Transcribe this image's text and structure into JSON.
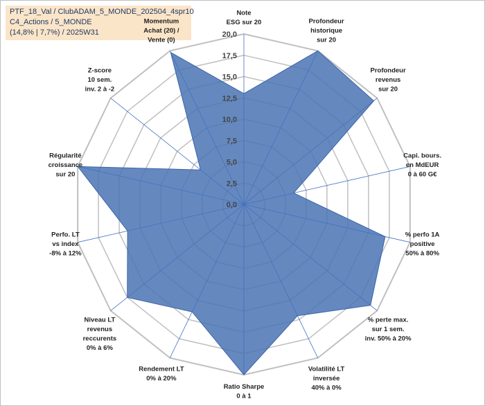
{
  "header": {
    "line1": "PTF_18_Val / ClubADAM_5_MONDE_202504_4spr10",
    "line2": "C4_Actions / 5_MONDE",
    "line3": "(14,8% | 7,7%) / 2025W31"
  },
  "colors": {
    "fill": "#4a74b4",
    "stroke": "#3c64a8",
    "grid": "#bfbfbf",
    "spoke": "#4472c4",
    "header_bg": "#fbe5c8",
    "header_text": "#1f3864"
  },
  "chart_data": {
    "type": "radar",
    "r_range": [
      0,
      20
    ],
    "grid": true,
    "r_ticks": [
      "0,0",
      "2,5",
      "5,0",
      "7,5",
      "10,0",
      "12,5",
      "15,0",
      "17,5",
      "20,0"
    ],
    "axes": [
      {
        "label": [
          "Note",
          "ESG sur 20"
        ],
        "value": 13.0
      },
      {
        "label": [
          "Profondeur",
          "historique",
          "sur 20"
        ],
        "value": 20.0
      },
      {
        "label": [
          "Profondeur",
          "revenus",
          "sur 20"
        ],
        "value": 19.5
      },
      {
        "label": [
          "Capi. bours.",
          "en MdEUR",
          "0 à 60 G€"
        ],
        "value": 6.0
      },
      {
        "label": [
          "% perfo 1A",
          "positive",
          "50% à 80%"
        ],
        "value": 17.0
      },
      {
        "label": [
          "% perte max.",
          "sur 1 sem.",
          "inv. 50% à 20%"
        ],
        "value": 19.0
      },
      {
        "label": [
          "Volatilité LT",
          "inversée",
          "40% à 0%"
        ],
        "value": 14.5
      },
      {
        "label": [
          "Ratio Sharpe",
          "0 à 1"
        ],
        "value": 20.0
      },
      {
        "label": [
          "Rendement LT",
          "0% à 20%"
        ],
        "value": 14.0
      },
      {
        "label": [
          "Niveau LT",
          "revenus",
          "reccurents",
          "0% à 6%"
        ],
        "value": 17.5
      },
      {
        "label": [
          "Perfo. LT",
          "vs index",
          "-8% à 12%"
        ],
        "value": 14.0
      },
      {
        "label": [
          "Régularité",
          "croissance",
          "sur 20"
        ],
        "value": 20.0
      },
      {
        "label": [
          "Z-score",
          "10 sem.",
          "inv. 2 à -2"
        ],
        "value": 6.5
      },
      {
        "label": [
          "Momentum",
          "Achat (20) /",
          "Vente (0)"
        ],
        "value": 19.8
      }
    ]
  }
}
